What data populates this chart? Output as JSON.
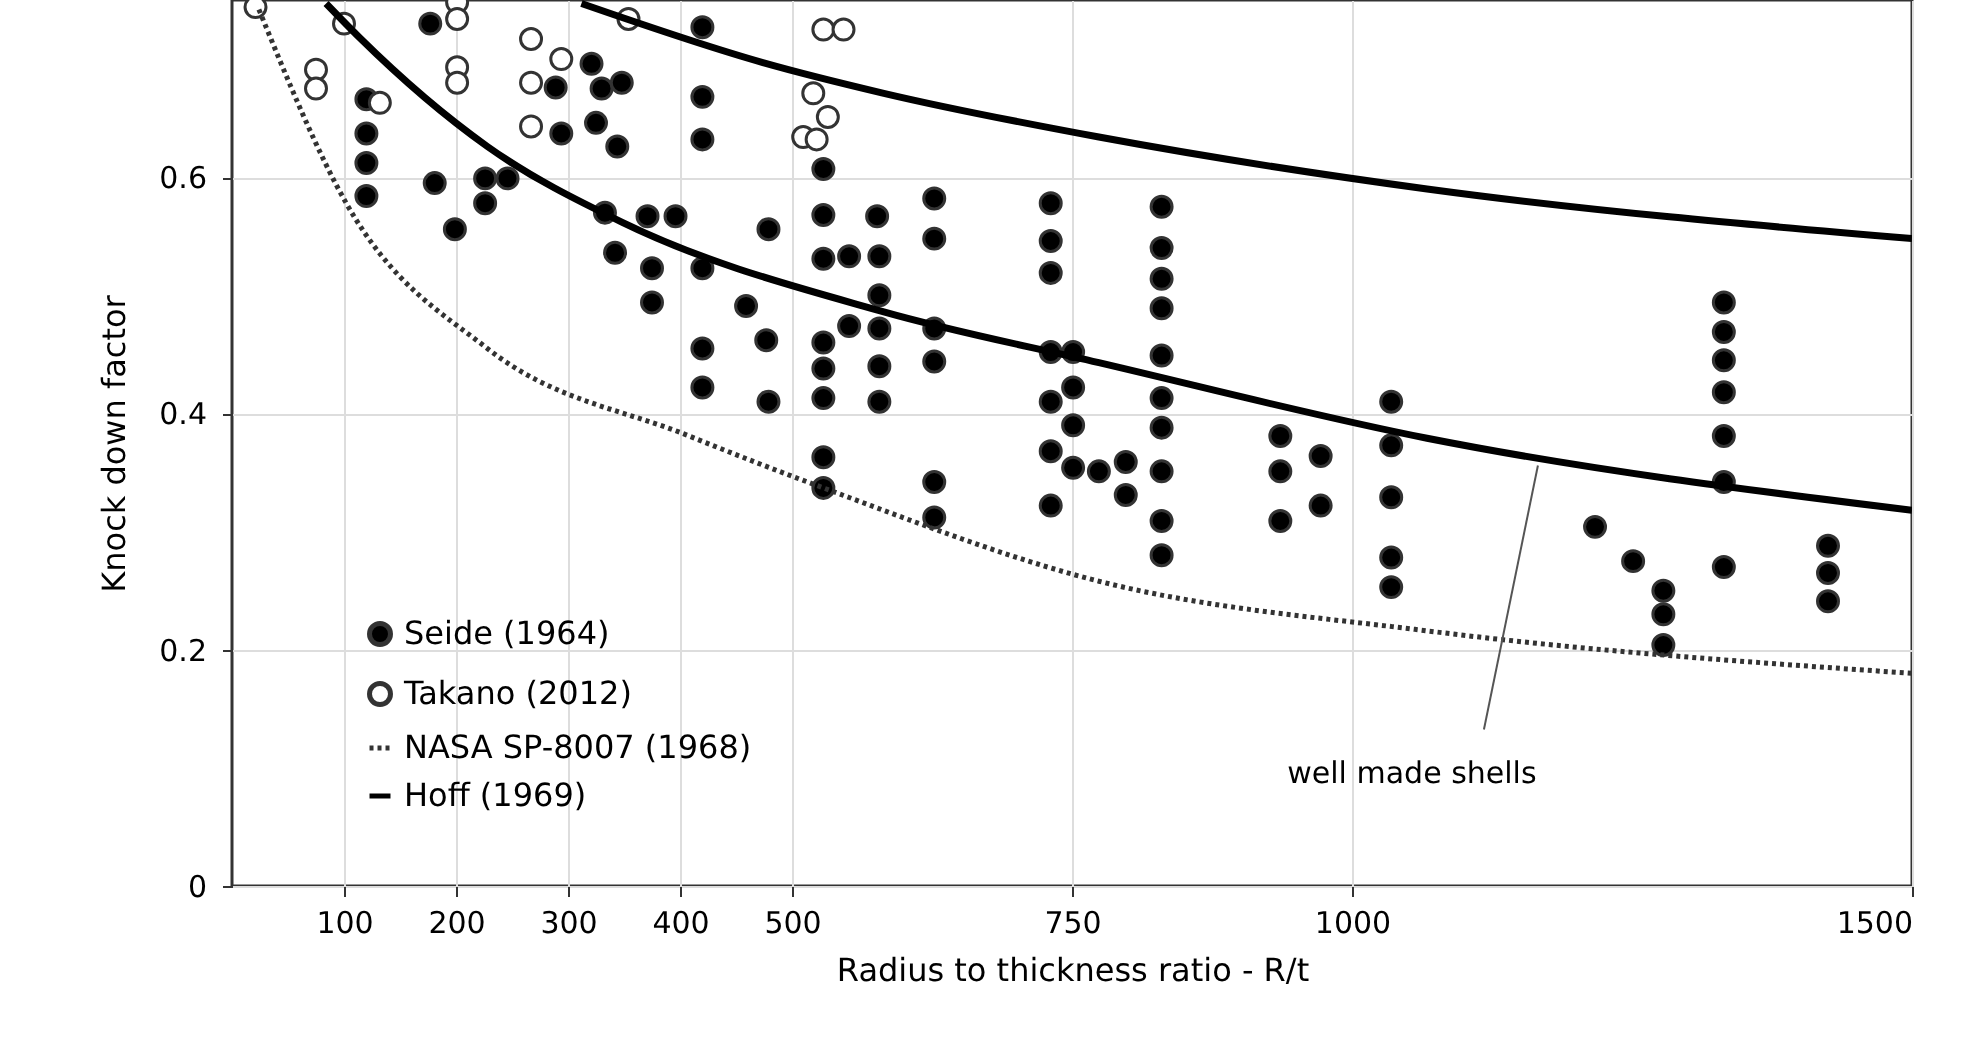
{
  "chart_data": {
    "type": "scatter",
    "xlabel": "Radius to thickness ratio - R/t",
    "ylabel": "Knock down factor",
    "xlim": [
      0,
      1500
    ],
    "ylim": [
      0,
      0.75
    ],
    "xticks": [
      100,
      200,
      300,
      400,
      500,
      750,
      1000,
      1500
    ],
    "yticks": [
      0,
      {
        "value": 0.2,
        "label": "0.2"
      },
      {
        "value": 0.4,
        "label": "0.4"
      },
      {
        "value": 0.6,
        "label": "0.6"
      }
    ],
    "grid": true,
    "legend": "bottom left",
    "annotations": [
      {
        "text": "well made shells",
        "x": 1166,
        "y": 0.356
      }
    ],
    "series": [
      {
        "name": "Seide (1964)",
        "marker": "circle",
        "color": "#000000",
        "x": [
          177,
          420,
          321,
          289,
          330,
          348,
          325,
          294,
          344,
          420,
          420,
          120,
          120,
          120,
          120,
          181,
          199,
          226,
          246,
          226,
          333,
          371,
          396,
          342,
          375,
          375,
          420,
          420,
          420,
          479,
          459,
          477,
          479,
          528,
          528,
          528,
          528,
          528,
          528,
          528,
          528,
          551,
          576,
          578,
          578,
          551,
          578,
          578,
          578,
          627,
          627,
          627,
          627,
          627,
          627,
          731,
          731,
          731,
          731,
          731,
          731,
          731,
          751,
          751,
          751,
          751,
          774,
          798,
          798,
          830,
          830,
          830,
          830,
          830,
          830,
          830,
          830,
          830,
          830,
          936,
          936,
          936,
          972,
          972,
          1035,
          1035,
          1035,
          1035,
          1035,
          1217,
          1251,
          1278,
          1278,
          1278,
          1332,
          1332,
          1332,
          1332,
          1332,
          1332,
          1332,
          1425,
          1425,
          1425
        ],
        "values": [
          0.73,
          0.727,
          0.696,
          0.676,
          0.675,
          0.68,
          0.646,
          0.637,
          0.626,
          0.668,
          0.632,
          0.666,
          0.637,
          0.612,
          0.584,
          0.595,
          0.556,
          0.599,
          0.599,
          0.578,
          0.57,
          0.567,
          0.567,
          0.536,
          0.523,
          0.494,
          0.523,
          0.455,
          0.422,
          0.556,
          0.491,
          0.462,
          0.41,
          0.607,
          0.568,
          0.531,
          0.46,
          0.438,
          0.413,
          0.363,
          0.337,
          0.533,
          0.567,
          0.533,
          0.5,
          0.474,
          0.472,
          0.44,
          0.41,
          0.582,
          0.548,
          0.472,
          0.444,
          0.342,
          0.312,
          0.578,
          0.546,
          0.519,
          0.452,
          0.41,
          0.368,
          0.322,
          0.452,
          0.422,
          0.39,
          0.354,
          0.351,
          0.359,
          0.331,
          0.575,
          0.54,
          0.514,
          0.489,
          0.449,
          0.413,
          0.388,
          0.351,
          0.309,
          0.28,
          0.381,
          0.351,
          0.309,
          0.364,
          0.322,
          0.41,
          0.373,
          0.329,
          0.278,
          0.253,
          0.304,
          0.275,
          0.25,
          0.23,
          0.204,
          0.494,
          0.469,
          0.445,
          0.418,
          0.381,
          0.342,
          0.27,
          0.288,
          0.265,
          0.241
        ]
      },
      {
        "name": "Takano (2012)",
        "marker": "circle",
        "color": "#ffffff",
        "x": [
          21,
          75,
          75,
          100,
          132,
          201,
          201,
          201,
          201,
          267,
          267,
          294,
          267,
          354,
          528,
          546,
          519,
          532,
          510,
          522
        ],
        "values": [
          0.744,
          0.691,
          0.675,
          0.73,
          0.663,
          0.748,
          0.734,
          0.693,
          0.68,
          0.717,
          0.68,
          0.7,
          0.643,
          0.734,
          0.725,
          0.725,
          0.671,
          0.651,
          0.634,
          0.632
        ]
      },
      {
        "name": "NASA SP-8007 (1968)",
        "type": "line",
        "line_style": "dotted",
        "color": "#333333",
        "x": [
          24,
          102,
          228,
          408,
          528,
          774,
          1067,
          1500
        ],
        "values": [
          0.742,
          0.578,
          0.455,
          0.381,
          0.337,
          0.258,
          0.216,
          0.18
        ]
      },
      {
        "name": "Hoff (1969)",
        "type": "line",
        "line_style": "solid",
        "color": "#000000",
        "x": [
          84,
          114,
          228,
          348,
          582,
          774,
          1067,
          1500
        ],
        "values": [
          0.747,
          0.718,
          0.626,
          0.562,
          0.486,
          0.443,
          0.379,
          0.318
        ]
      },
      {
        "type": "line",
        "line_style": "solid",
        "color": "#000000",
        "x": [
          312,
          474,
          582,
          774,
          1067,
          1500
        ],
        "values": [
          0.747,
          0.697,
          0.671,
          0.634,
          0.59,
          0.548
        ]
      }
    ]
  }
}
